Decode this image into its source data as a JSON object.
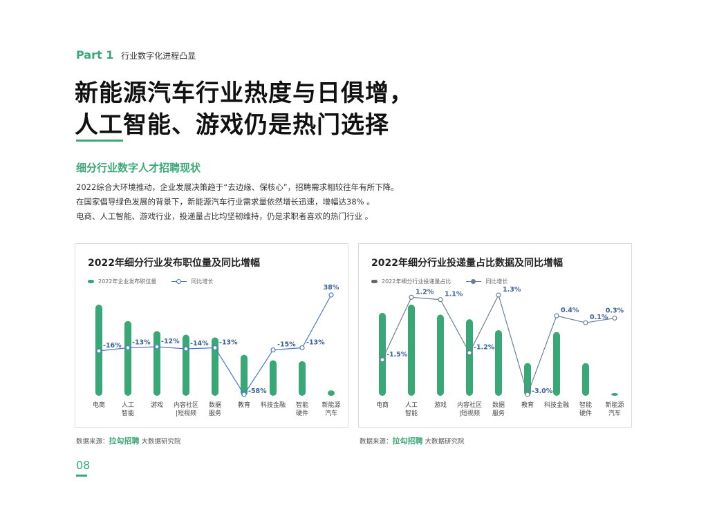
{
  "header": {
    "part_number": "Part 1",
    "part_title": "行业数字化进程凸显"
  },
  "headline": {
    "line1": "新能源汽车行业热度与日俱增，",
    "line2": "人工智能、游戏仍是热门选择"
  },
  "section_title": "细分行业数字人才招聘现状",
  "paragraphs": [
    "2022综合大环境推动，企业发展决策趋于“去边缘、保核心”，招聘需求相较往年有所下降。",
    "在国家倡导绿色发展的背景下，新能源汽车行业需求量依然增长迅速，增幅达38% 。",
    "电商、人工智能、游戏行业，投递量占比均坚韧维持，仍是求职者喜欢的热门行业 。"
  ],
  "colors": {
    "accent": "#3aa876",
    "bar": "#3aa876",
    "line1": "#4a78c2",
    "line2": "#6a7f96",
    "label": "#3b5f9a"
  },
  "chart_data": [
    {
      "type": "bar",
      "title": "2022年细分行业发布职位量及同比增幅",
      "legend": {
        "bar": "2022年企业发布职位量",
        "line": "同比增长",
        "placement": "top-left"
      },
      "categories": [
        [
          "电商"
        ],
        [
          "人工",
          "智能"
        ],
        [
          "游戏"
        ],
        [
          "内容社区",
          "|短视频"
        ],
        [
          "数据",
          "服务"
        ],
        [
          "教育"
        ],
        [
          "科技金融"
        ],
        [
          "智能",
          "硬件"
        ],
        [
          "新能源",
          "汽车"
        ]
      ],
      "series": [
        {
          "name": "2022年企业发布职位量",
          "kind": "bar",
          "values": [
            100,
            82,
            71,
            67,
            64,
            45,
            39,
            38,
            6
          ]
        },
        {
          "name": "同比增长",
          "kind": "line",
          "values": [
            -16,
            -13,
            -12,
            -14,
            -13,
            -58,
            -15,
            -13,
            38
          ],
          "labels": [
            "-16%",
            "-13%",
            "-12%",
            "-14%",
            "-13%",
            "-58%",
            "-15%",
            "-13%",
            "38%"
          ]
        }
      ],
      "ylim_bar": [
        0,
        100
      ],
      "ylim_line": [
        -58,
        38
      ]
    },
    {
      "type": "bar",
      "title": "2022年细分行业投递量占比数据及同比增幅",
      "legend": {
        "bar": "2022年细分行业投递量占比",
        "line": "同比增长",
        "placement": "top-left"
      },
      "categories": [
        [
          "电商"
        ],
        [
          "人工",
          "智能"
        ],
        [
          "游戏"
        ],
        [
          "内容社区",
          "|短视频"
        ],
        [
          "数据",
          "服务"
        ],
        [
          "教育"
        ],
        [
          "科技金融"
        ],
        [
          "智能",
          "硬件"
        ],
        [
          "新能源",
          "汽车"
        ]
      ],
      "series": [
        {
          "name": "2022年细分行业投递量占比",
          "kind": "bar",
          "values": [
            91,
            100,
            89,
            84,
            72,
            36,
            70,
            36,
            3
          ]
        },
        {
          "name": "同比增长",
          "kind": "line",
          "values": [
            -1.5,
            1.2,
            1.1,
            -1.2,
            1.3,
            -3.0,
            0.4,
            0.1,
            0.3
          ],
          "labels": [
            "-1.5%",
            "1.2%",
            "1.1%",
            "-1.2%",
            "1.3%",
            "-3.0%",
            "0.4%",
            "0.1%",
            "0.3%"
          ]
        }
      ],
      "ylim_bar": [
        0,
        100
      ],
      "ylim_line": [
        -3.0,
        1.3
      ]
    }
  ],
  "sources": [
    {
      "prefix": "数据来源：",
      "brand": "拉勾招聘",
      "suffix": " 大数据研究院"
    },
    {
      "prefix": "数据来源：",
      "brand": "拉勾招聘",
      "suffix": " 大数据研究院"
    }
  ],
  "page_number": "08"
}
